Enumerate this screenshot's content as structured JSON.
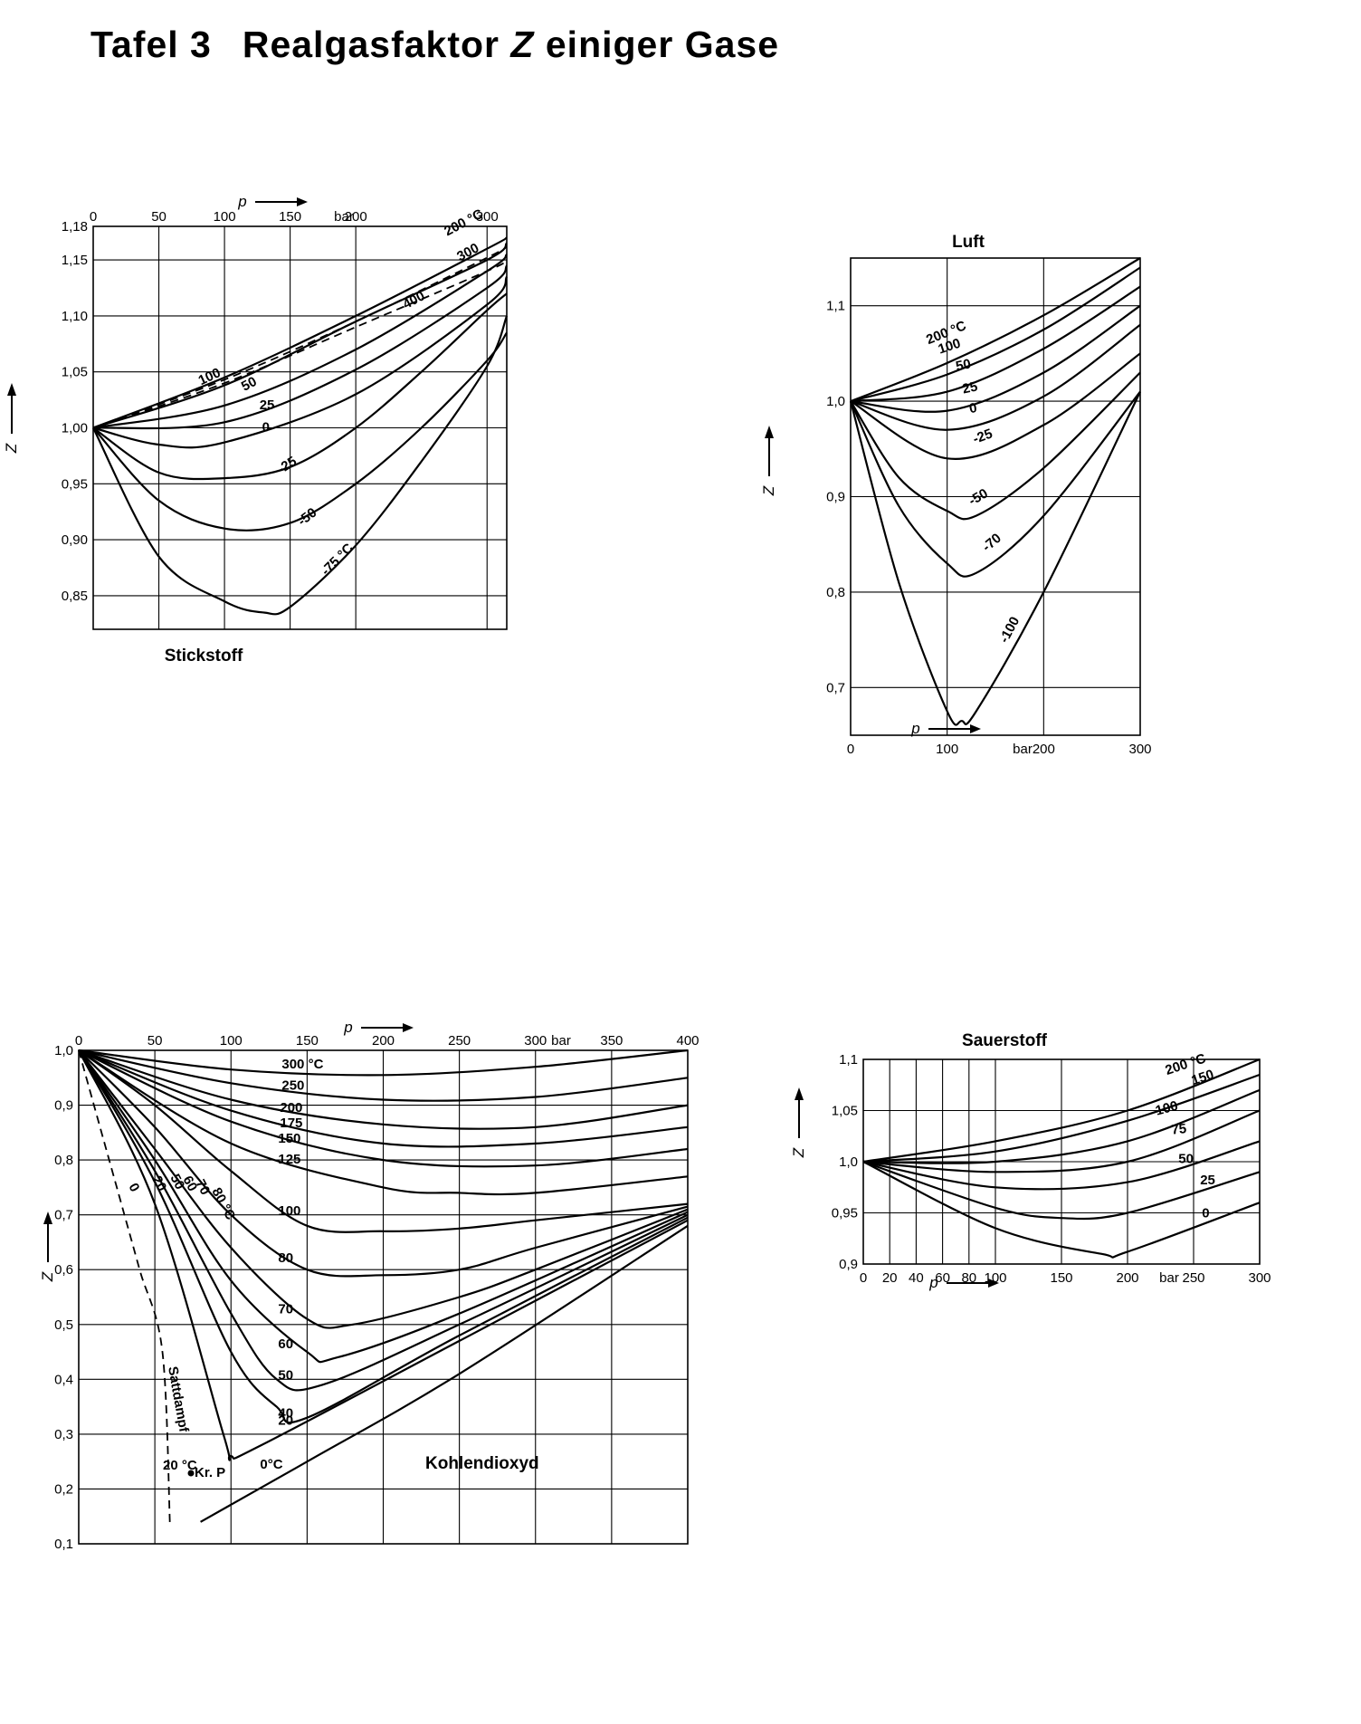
{
  "page": {
    "title_prefix": "Tafel 3",
    "title_main": "Realgasfaktor",
    "title_symbol": "Z",
    "title_suffix": "einiger Gase"
  },
  "chart_data": [
    {
      "id": "stickstoff",
      "type": "line",
      "title": "Stickstoff",
      "xlabel": "p",
      "ylabel": "Z",
      "x_unit": "bar",
      "xlim": [
        0,
        315
      ],
      "ylim": [
        0.82,
        1.18
      ],
      "x_ticks": [
        "0",
        "50",
        "100",
        "150",
        "200",
        "300"
      ],
      "x_tick_values": [
        0,
        50,
        100,
        150,
        200,
        300
      ],
      "y_ticks": [
        "1,18",
        "1,15",
        "1,10",
        "1,05",
        "1,00",
        "0,95",
        "0,90",
        "0,85"
      ],
      "y_tick_values": [
        1.18,
        1.15,
        1.1,
        1.05,
        1.0,
        0.95,
        0.9,
        0.85
      ],
      "series": [
        {
          "name": "200 °C",
          "x": [
            0,
            100,
            200,
            300,
            315
          ],
          "y": [
            1.0,
            1.045,
            1.1,
            1.16,
            1.17
          ]
        },
        {
          "name": "300",
          "x": [
            0,
            100,
            200,
            300,
            315
          ],
          "y": [
            1.0,
            1.043,
            1.095,
            1.152,
            1.162
          ],
          "dashed": true
        },
        {
          "name": "400",
          "x": [
            0,
            100,
            200,
            300,
            315
          ],
          "y": [
            1.0,
            1.04,
            1.09,
            1.14,
            1.15
          ],
          "dashed": true
        },
        {
          "name": "100",
          "x": [
            0,
            100,
            200,
            300,
            315
          ],
          "y": [
            1.0,
            1.038,
            1.095,
            1.15,
            1.165
          ]
        },
        {
          "name": "50",
          "x": [
            0,
            100,
            200,
            300,
            315
          ],
          "y": [
            1.0,
            1.02,
            1.07,
            1.14,
            1.155
          ]
        },
        {
          "name": "25",
          "x": [
            0,
            100,
            200,
            300,
            315
          ],
          "y": [
            1.0,
            1.005,
            1.052,
            1.125,
            1.145
          ]
        },
        {
          "name": "0",
          "x": [
            0,
            50,
            100,
            200,
            300,
            315
          ],
          "y": [
            1.0,
            0.985,
            0.987,
            1.03,
            1.11,
            1.135
          ]
        },
        {
          "name": "-25",
          "x": [
            0,
            50,
            100,
            150,
            200,
            250,
            300,
            315
          ],
          "y": [
            1.0,
            0.96,
            0.955,
            0.965,
            1.0,
            1.05,
            1.105,
            1.12
          ]
        },
        {
          "name": "-50",
          "x": [
            0,
            50,
            100,
            150,
            200,
            250,
            300,
            315
          ],
          "y": [
            1.0,
            0.935,
            0.91,
            0.915,
            0.95,
            1.0,
            1.06,
            1.085
          ]
        },
        {
          "name": "-75 °C",
          "x": [
            0,
            50,
            100,
            130,
            150,
            200,
            250,
            300,
            315
          ],
          "y": [
            1.0,
            0.885,
            0.845,
            0.835,
            0.84,
            0.895,
            0.97,
            1.055,
            1.1
          ]
        }
      ],
      "curve_labels": [
        "200 °C",
        "300",
        "400",
        "100",
        "50",
        "25",
        "0",
        "-25",
        "-50",
        "-75 °C"
      ]
    },
    {
      "id": "luft",
      "type": "line",
      "title": "Luft",
      "xlabel": "p",
      "ylabel": "Z",
      "x_unit": "bar",
      "xlim": [
        0,
        300
      ],
      "ylim": [
        0.65,
        1.15
      ],
      "x_ticks": [
        "0",
        "100",
        "200",
        "300"
      ],
      "x_tick_values": [
        0,
        100,
        200,
        300
      ],
      "y_ticks": [
        "1,1",
        "1,0",
        "0,9",
        "0,8",
        "0,7"
      ],
      "y_tick_values": [
        1.1,
        1.0,
        0.9,
        0.8,
        0.7
      ],
      "series": [
        {
          "name": "200 °C",
          "x": [
            0,
            100,
            200,
            300
          ],
          "y": [
            1.0,
            1.04,
            1.09,
            1.15
          ]
        },
        {
          "name": "100",
          "x": [
            0,
            100,
            200,
            300
          ],
          "y": [
            1.0,
            1.028,
            1.075,
            1.14
          ]
        },
        {
          "name": "50",
          "x": [
            0,
            100,
            200,
            300
          ],
          "y": [
            1.0,
            1.01,
            1.055,
            1.12
          ]
        },
        {
          "name": "25",
          "x": [
            0,
            100,
            200,
            300
          ],
          "y": [
            1.0,
            0.99,
            1.03,
            1.1
          ]
        },
        {
          "name": "0",
          "x": [
            0,
            100,
            200,
            300
          ],
          "y": [
            1.0,
            0.97,
            1.005,
            1.08
          ]
        },
        {
          "name": "-25",
          "x": [
            0,
            100,
            200,
            300
          ],
          "y": [
            1.0,
            0.94,
            0.975,
            1.05
          ]
        },
        {
          "name": "-50",
          "x": [
            0,
            50,
            100,
            130,
            200,
            300
          ],
          "y": [
            1.0,
            0.92,
            0.885,
            0.88,
            0.93,
            1.03
          ]
        },
        {
          "name": "-70",
          "x": [
            0,
            50,
            100,
            130,
            200,
            300
          ],
          "y": [
            1.0,
            0.89,
            0.83,
            0.82,
            0.88,
            1.01
          ]
        },
        {
          "name": "-100",
          "x": [
            0,
            50,
            100,
            115,
            130,
            200,
            300
          ],
          "y": [
            1.0,
            0.81,
            0.675,
            0.665,
            0.675,
            0.8,
            1.01
          ]
        }
      ],
      "curve_labels": [
        "200 °C",
        "100",
        "50",
        "25",
        "0",
        "-25",
        "-50",
        "-70",
        "-100"
      ]
    },
    {
      "id": "kohlendioxyd",
      "type": "line",
      "title": "Kohlendioxyd",
      "xlabel": "p",
      "ylabel": "Z",
      "x_unit": "bar",
      "xlim": [
        0,
        400
      ],
      "ylim": [
        0.1,
        1.0
      ],
      "x_ticks": [
        "0",
        "50",
        "100",
        "150",
        "200",
        "250",
        "300",
        "350",
        "400"
      ],
      "x_tick_values": [
        0,
        50,
        100,
        150,
        200,
        250,
        300,
        350,
        400
      ],
      "y_ticks": [
        "1,0",
        "0,9",
        "0,8",
        "0,7",
        "0,6",
        "0,5",
        "0,4",
        "0,3",
        "0,2",
        "0,1"
      ],
      "y_tick_values": [
        1.0,
        0.9,
        0.8,
        0.7,
        0.6,
        0.5,
        0.4,
        0.3,
        0.2,
        0.1
      ],
      "series": [
        {
          "name": "300 °C",
          "x": [
            0,
            100,
            200,
            300,
            400
          ],
          "y": [
            1.0,
            0.965,
            0.955,
            0.97,
            1.0
          ]
        },
        {
          "name": "250",
          "x": [
            0,
            100,
            200,
            300,
            400
          ],
          "y": [
            1.0,
            0.94,
            0.91,
            0.915,
            0.95
          ]
        },
        {
          "name": "200",
          "x": [
            0,
            100,
            200,
            300,
            400
          ],
          "y": [
            1.0,
            0.91,
            0.865,
            0.86,
            0.9
          ]
        },
        {
          "name": "175",
          "x": [
            0,
            100,
            200,
            300,
            400
          ],
          "y": [
            1.0,
            0.89,
            0.83,
            0.83,
            0.86
          ]
        },
        {
          "name": "150",
          "x": [
            0,
            100,
            200,
            300,
            400
          ],
          "y": [
            1.0,
            0.87,
            0.8,
            0.79,
            0.82
          ]
        },
        {
          "name": "125",
          "x": [
            0,
            100,
            200,
            250,
            300,
            400
          ],
          "y": [
            1.0,
            0.83,
            0.75,
            0.74,
            0.74,
            0.77
          ]
        },
        {
          "name": "100",
          "x": [
            0,
            50,
            100,
            150,
            200,
            250,
            300,
            400
          ],
          "y": [
            1.0,
            0.9,
            0.78,
            0.68,
            0.67,
            0.675,
            0.69,
            0.72
          ]
        },
        {
          "name": "80",
          "x": [
            0,
            50,
            100,
            150,
            200,
            250,
            300,
            400
          ],
          "y": [
            1.0,
            0.86,
            0.7,
            0.6,
            0.59,
            0.6,
            0.64,
            0.715
          ]
        },
        {
          "name": "70",
          "x": [
            0,
            50,
            100,
            150,
            180,
            250,
            300,
            400
          ],
          "y": [
            1.0,
            0.82,
            0.64,
            0.51,
            0.5,
            0.55,
            0.6,
            0.71
          ]
        },
        {
          "name": "60",
          "x": [
            0,
            50,
            100,
            150,
            170,
            250,
            400
          ],
          "y": [
            1.0,
            0.8,
            0.58,
            0.45,
            0.44,
            0.52,
            0.705
          ]
        },
        {
          "name": "50",
          "x": [
            0,
            50,
            100,
            130,
            160,
            250,
            400
          ],
          "y": [
            1.0,
            0.78,
            0.52,
            0.4,
            0.39,
            0.5,
            0.7
          ]
        },
        {
          "name": "40",
          "x": [
            0,
            50,
            100,
            130,
            150,
            250,
            400
          ],
          "y": [
            1.0,
            0.76,
            0.45,
            0.35,
            0.33,
            0.48,
            0.695
          ]
        },
        {
          "name": "20",
          "x": [
            0,
            50,
            95,
            100,
            120,
            250,
            400
          ],
          "y": [
            1.0,
            0.72,
            0.3,
            0.26,
            0.28,
            0.47,
            0.69
          ]
        },
        {
          "name": "0°C",
          "x": [
            80,
            150,
            250,
            400
          ],
          "y": [
            0.14,
            0.25,
            0.41,
            0.68
          ]
        },
        {
          "name": "Sattdampf",
          "x": [
            0,
            25,
            40,
            55,
            60
          ],
          "y": [
            1.0,
            0.75,
            0.6,
            0.45,
            0.13
          ],
          "dashed": true
        }
      ],
      "curve_labels": [
        "300 °C",
        "250",
        "200",
        "175",
        "150",
        "125",
        "100",
        "80",
        "70",
        "60",
        "50",
        "40",
        "20",
        "0°C",
        "80 °C",
        "70",
        "60",
        "50",
        "20",
        "0",
        "20 °C",
        "Sattdampf",
        "Kr. P"
      ]
    },
    {
      "id": "sauerstoff",
      "type": "line",
      "title": "Sauerstoff",
      "xlabel": "p",
      "ylabel": "Z",
      "x_unit": "bar",
      "xlim": [
        0,
        300
      ],
      "ylim": [
        0.9,
        1.1
      ],
      "x_ticks": [
        "0",
        "20",
        "40",
        "60",
        "80",
        "100",
        "150",
        "200",
        "250",
        "300"
      ],
      "x_tick_values": [
        0,
        20,
        40,
        60,
        80,
        100,
        150,
        200,
        250,
        300
      ],
      "y_ticks": [
        "1,1",
        "1,05",
        "1,0",
        "0,95",
        "0,9"
      ],
      "y_tick_values": [
        1.1,
        1.05,
        1.0,
        0.95,
        0.9
      ],
      "series": [
        {
          "name": "200 °C",
          "x": [
            0,
            100,
            200,
            300
          ],
          "y": [
            1.0,
            1.02,
            1.05,
            1.1
          ]
        },
        {
          "name": "150",
          "x": [
            0,
            100,
            200,
            300
          ],
          "y": [
            1.0,
            1.01,
            1.04,
            1.085
          ]
        },
        {
          "name": "100",
          "x": [
            0,
            100,
            200,
            300
          ],
          "y": [
            1.0,
            1.0,
            1.02,
            1.07
          ]
        },
        {
          "name": "75",
          "x": [
            0,
            100,
            200,
            300
          ],
          "y": [
            1.0,
            0.99,
            1.0,
            1.05
          ]
        },
        {
          "name": "50",
          "x": [
            0,
            100,
            200,
            300
          ],
          "y": [
            1.0,
            0.975,
            0.98,
            1.02
          ]
        },
        {
          "name": "25",
          "x": [
            0,
            100,
            150,
            200,
            300
          ],
          "y": [
            1.0,
            0.955,
            0.945,
            0.95,
            0.99
          ]
        },
        {
          "name": "0",
          "x": [
            0,
            100,
            180,
            200,
            300
          ],
          "y": [
            1.0,
            0.935,
            0.91,
            0.912,
            0.96
          ]
        }
      ],
      "curve_labels": [
        "200 °C",
        "150",
        "100",
        "75",
        "50",
        "25",
        "0"
      ]
    }
  ]
}
